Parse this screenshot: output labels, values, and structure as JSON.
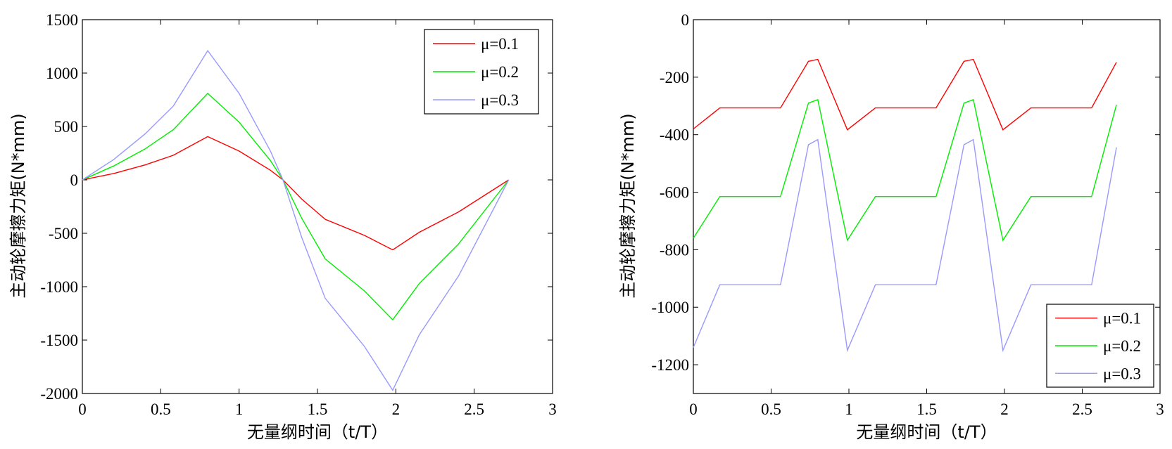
{
  "chart_data": [
    {
      "type": "line",
      "xlabel": "无量纲时间（t/T）",
      "ylabel": "主动轮摩擦力矩(N*mm)",
      "xlim": [
        0,
        3
      ],
      "ylim": [
        -2000,
        1500
      ],
      "xticks": [
        0,
        0.5,
        1,
        1.5,
        2,
        2.5,
        3
      ],
      "xtick_labels": [
        "0",
        "0.5",
        "1",
        "1.5",
        "2",
        "2.5",
        "3"
      ],
      "yticks": [
        1500,
        1000,
        500,
        0,
        -500,
        -1000,
        -1500,
        -2000
      ],
      "ytick_labels": [
        "1500",
        "1000",
        "500",
        "0",
        "-500",
        "-1000",
        "-1500",
        "-2000"
      ],
      "grid": false,
      "legend_position": "top-right",
      "series": [
        {
          "name": "μ=0.1",
          "color": "#ff0000",
          "x": [
            0,
            0.2,
            0.4,
            0.58,
            0.8,
            1.0,
            1.2,
            1.28,
            1.4,
            1.55,
            1.8,
            1.98,
            2.15,
            2.4,
            2.72
          ],
          "y": [
            0,
            60,
            140,
            230,
            405,
            270,
            90,
            0,
            -180,
            -370,
            -520,
            -655,
            -490,
            -300,
            0
          ]
        },
        {
          "name": "μ=0.2",
          "color": "#00ee00",
          "x": [
            0,
            0.2,
            0.4,
            0.58,
            0.8,
            1.0,
            1.2,
            1.28,
            1.4,
            1.55,
            1.8,
            1.98,
            2.15,
            2.4,
            2.72
          ],
          "y": [
            0,
            130,
            290,
            470,
            810,
            540,
            180,
            0,
            -360,
            -740,
            -1040,
            -1310,
            -970,
            -600,
            0
          ]
        },
        {
          "name": "μ=0.3",
          "color": "#9999ff",
          "x": [
            0,
            0.2,
            0.4,
            0.58,
            0.8,
            1.0,
            1.2,
            1.28,
            1.4,
            1.55,
            1.8,
            1.98,
            2.15,
            2.4,
            2.72
          ],
          "y": [
            0,
            190,
            430,
            690,
            1210,
            810,
            270,
            0,
            -540,
            -1110,
            -1560,
            -1970,
            -1450,
            -900,
            0
          ]
        }
      ]
    },
    {
      "type": "line",
      "xlabel": "无量纲时间（t/T）",
      "ylabel": "主动轮摩擦力矩(N*mm)",
      "xlim": [
        0,
        3
      ],
      "ylim": [
        -1300,
        0
      ],
      "xticks": [
        0,
        0.5,
        1,
        1.5,
        2,
        2.5,
        3
      ],
      "xtick_labels": [
        "0",
        "0.5",
        "1",
        "1.5",
        "2",
        "2.5",
        "3"
      ],
      "yticks": [
        0,
        -200,
        -400,
        -600,
        -800,
        -1000,
        -1200
      ],
      "ytick_labels": [
        "0",
        "-200",
        "-400",
        "-600",
        "-800",
        "-1000",
        "-1200"
      ],
      "grid": false,
      "legend_position": "bottom-right",
      "series": [
        {
          "name": "μ=0.1",
          "color": "#ff0000",
          "x": [
            0,
            0.17,
            0.56,
            0.74,
            0.8,
            0.99,
            1.17,
            1.56,
            1.74,
            1.8,
            1.99,
            2.17,
            2.56,
            2.72
          ],
          "y": [
            -380,
            -307,
            -307,
            -145,
            -138,
            -383,
            -307,
            -307,
            -145,
            -138,
            -383,
            -307,
            -307,
            -148
          ]
        },
        {
          "name": "μ=0.2",
          "color": "#00ee00",
          "x": [
            0,
            0.17,
            0.56,
            0.74,
            0.8,
            0.99,
            1.17,
            1.56,
            1.74,
            1.8,
            1.99,
            2.17,
            2.56,
            2.72
          ],
          "y": [
            -760,
            -615,
            -615,
            -290,
            -278,
            -767,
            -615,
            -615,
            -290,
            -278,
            -767,
            -615,
            -615,
            -296
          ]
        },
        {
          "name": "μ=0.3",
          "color": "#9999ff",
          "x": [
            0,
            0.17,
            0.56,
            0.74,
            0.8,
            0.99,
            1.17,
            1.56,
            1.74,
            1.8,
            1.99,
            2.17,
            2.56,
            2.72
          ],
          "y": [
            -1140,
            -922,
            -922,
            -435,
            -417,
            -1150,
            -922,
            -922,
            -435,
            -417,
            -1150,
            -922,
            -922,
            -444
          ]
        }
      ]
    }
  ]
}
